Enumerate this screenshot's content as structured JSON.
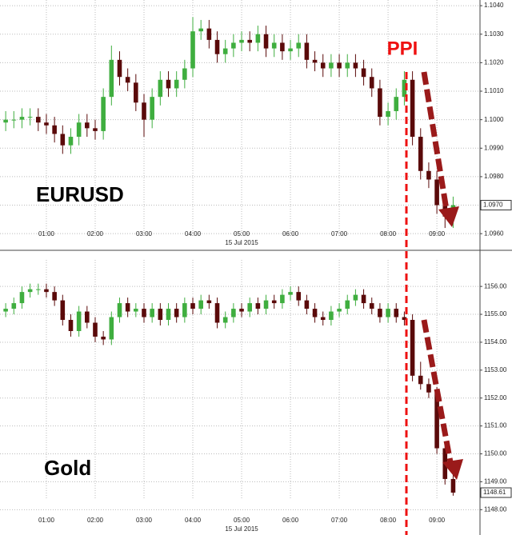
{
  "event_label": "PPI",
  "chart_data": [
    {
      "type": "candlestick",
      "annotation": "EURUSD",
      "xlabel": "15 Jul 2015",
      "xlim": [
        "00:03",
        "09:53"
      ],
      "xticks": [
        "01:00",
        "02:00",
        "03:00",
        "04:00",
        "05:00",
        "06:00",
        "07:00",
        "08:00",
        "09:00"
      ],
      "ylim": [
        1.0955,
        1.1042
      ],
      "yticks": [
        {
          "value": 1.096,
          "label": "1.0960"
        },
        {
          "value": 1.097,
          "label": "1.0970"
        },
        {
          "value": 1.098,
          "label": "1.0980"
        },
        {
          "value": 1.099,
          "label": "1.0990"
        },
        {
          "value": 1.1,
          "label": "1.1000"
        },
        {
          "value": 1.101,
          "label": "1.1010"
        },
        {
          "value": 1.102,
          "label": "1.1020"
        },
        {
          "value": 1.103,
          "label": "1.1030"
        },
        {
          "value": 1.104,
          "label": "1.1040"
        }
      ],
      "grid": true,
      "up_color": "#3fae3f",
      "down_color": "#5a0a0a",
      "last_price": {
        "value": 1.097,
        "label": "1.0970"
      },
      "x": [
        "00:10",
        "00:20",
        "00:30",
        "00:40",
        "00:50",
        "01:00",
        "01:10",
        "01:20",
        "01:30",
        "01:40",
        "01:50",
        "02:00",
        "02:10",
        "02:20",
        "02:30",
        "02:40",
        "02:50",
        "03:00",
        "03:10",
        "03:20",
        "03:30",
        "03:40",
        "03:50",
        "04:00",
        "04:10",
        "04:20",
        "04:30",
        "04:40",
        "04:50",
        "05:00",
        "05:10",
        "05:20",
        "05:30",
        "05:40",
        "05:50",
        "06:00",
        "06:10",
        "06:20",
        "06:30",
        "06:40",
        "06:50",
        "07:00",
        "07:10",
        "07:20",
        "07:30",
        "07:40",
        "07:50",
        "08:00",
        "08:10",
        "08:20",
        "08:30",
        "08:40",
        "08:50",
        "09:00",
        "09:10",
        "09:20"
      ],
      "open": [
        1.0999,
        1.1,
        1.1,
        1.1001,
        1.1001,
        1.0999,
        1.0998,
        1.0995,
        1.0991,
        1.0994,
        1.0999,
        1.0997,
        1.0996,
        1.1008,
        1.1021,
        1.1015,
        1.1013,
        1.1006,
        1.1,
        1.1008,
        1.1014,
        1.1011,
        1.1014,
        1.1018,
        1.1031,
        1.1032,
        1.1028,
        1.1023,
        1.1025,
        1.1027,
        1.1028,
        1.1027,
        1.103,
        1.1025,
        1.1027,
        1.1024,
        1.1025,
        1.1027,
        1.1021,
        1.102,
        1.1018,
        1.102,
        1.1018,
        1.102,
        1.1018,
        1.1015,
        1.1011,
        1.1001,
        1.1003,
        1.1008,
        1.1014,
        1.0994,
        1.0982,
        1.0979,
        1.097,
        1.0966
      ],
      "high": [
        1.1003,
        1.1003,
        1.1004,
        1.1004,
        1.1004,
        1.1002,
        1.1001,
        1.0998,
        1.0997,
        1.1002,
        1.1002,
        1.1,
        1.1011,
        1.1026,
        1.1024,
        1.1018,
        1.1016,
        1.1009,
        1.1011,
        1.1017,
        1.1017,
        1.1017,
        1.1021,
        1.1036,
        1.1035,
        1.1035,
        1.1031,
        1.1028,
        1.103,
        1.1031,
        1.1031,
        1.1033,
        1.1033,
        1.103,
        1.103,
        1.1028,
        1.103,
        1.103,
        1.1024,
        1.1023,
        1.1023,
        1.1023,
        1.1023,
        1.1023,
        1.1021,
        1.1018,
        1.1014,
        1.1006,
        1.1011,
        1.1017,
        1.1017,
        1.0997,
        1.0985,
        1.0982,
        1.0973,
        1.0973
      ],
      "low": [
        1.0996,
        1.0997,
        1.0997,
        1.0998,
        1.0996,
        1.0995,
        1.0992,
        1.0988,
        1.0988,
        1.0991,
        1.0994,
        1.0993,
        1.0993,
        1.1005,
        1.1012,
        1.101,
        1.1003,
        1.0994,
        1.0997,
        1.1005,
        1.1008,
        1.1008,
        1.1011,
        1.1015,
        1.1028,
        1.1025,
        1.102,
        1.102,
        1.1022,
        1.1024,
        1.1024,
        1.1024,
        1.1022,
        1.1022,
        1.1021,
        1.1021,
        1.1022,
        1.1018,
        1.1017,
        1.1015,
        1.1015,
        1.1015,
        1.1015,
        1.1015,
        1.1012,
        1.1008,
        1.0998,
        1.0998,
        1.1,
        1.1005,
        1.0991,
        1.0979,
        1.0976,
        1.0967,
        1.0962,
        1.0962
      ],
      "close": [
        1.1,
        1.1,
        1.1001,
        1.1001,
        1.0999,
        1.0998,
        1.0995,
        1.0991,
        1.0994,
        1.0999,
        1.0997,
        1.0996,
        1.1008,
        1.1021,
        1.1015,
        1.1013,
        1.1006,
        1.1,
        1.1008,
        1.1014,
        1.1011,
        1.1014,
        1.1018,
        1.1031,
        1.1032,
        1.1028,
        1.1023,
        1.1025,
        1.1027,
        1.1028,
        1.1027,
        1.103,
        1.1025,
        1.1027,
        1.1024,
        1.1025,
        1.1027,
        1.1021,
        1.102,
        1.1018,
        1.102,
        1.1018,
        1.102,
        1.1018,
        1.1015,
        1.1011,
        1.1001,
        1.1003,
        1.1008,
        1.1014,
        1.0994,
        1.0982,
        1.0979,
        1.097,
        1.0966,
        1.097
      ]
    },
    {
      "type": "candlestick",
      "annotation": "Gold",
      "xlabel": "15 Jul 2015",
      "xlim": [
        "00:03",
        "09:53"
      ],
      "xticks": [
        "01:00",
        "02:00",
        "03:00",
        "04:00",
        "05:00",
        "06:00",
        "07:00",
        "08:00",
        "09:00"
      ],
      "ylim": [
        1147.78,
        1156.95
      ],
      "yticks": [
        {
          "value": 1148,
          "label": "1148.00"
        },
        {
          "value": 1149,
          "label": "1149.00"
        },
        {
          "value": 1150,
          "label": "1150.00"
        },
        {
          "value": 1151,
          "label": "1151.00"
        },
        {
          "value": 1152,
          "label": "1152.00"
        },
        {
          "value": 1153,
          "label": "1153.00"
        },
        {
          "value": 1154,
          "label": "1154.00"
        },
        {
          "value": 1155,
          "label": "1155.00"
        },
        {
          "value": 1156,
          "label": "1156.00"
        }
      ],
      "grid": true,
      "up_color": "#3fae3f",
      "down_color": "#5a0a0a",
      "last_price": 1148.61,
      "x": [
        "00:10",
        "00:20",
        "00:30",
        "00:40",
        "00:50",
        "01:00",
        "01:10",
        "01:20",
        "01:30",
        "01:40",
        "01:50",
        "02:00",
        "02:10",
        "02:20",
        "02:30",
        "02:40",
        "02:50",
        "03:00",
        "03:10",
        "03:20",
        "03:30",
        "03:40",
        "03:50",
        "04:00",
        "04:10",
        "04:20",
        "04:30",
        "04:40",
        "04:50",
        "05:00",
        "05:10",
        "05:20",
        "05:30",
        "05:40",
        "05:50",
        "06:00",
        "06:10",
        "06:20",
        "06:30",
        "06:40",
        "06:50",
        "07:00",
        "07:10",
        "07:20",
        "07:30",
        "07:40",
        "07:50",
        "08:00",
        "08:10",
        "08:20",
        "08:30",
        "08:40",
        "08:50",
        "09:00",
        "09:10",
        "09:20"
      ],
      "open": [
        1155.1,
        1155.2,
        1155.4,
        1155.8,
        1155.9,
        1155.9,
        1155.8,
        1155.5,
        1154.8,
        1154.4,
        1155.1,
        1154.7,
        1154.2,
        1154.1,
        1154.9,
        1155.4,
        1155.1,
        1155.2,
        1154.9,
        1155.2,
        1154.8,
        1155.2,
        1154.9,
        1155.4,
        1155.2,
        1155.5,
        1155.4,
        1154.7,
        1154.9,
        1155.2,
        1155.1,
        1155.4,
        1155.2,
        1155.5,
        1155.4,
        1155.7,
        1155.8,
        1155.5,
        1155.2,
        1154.9,
        1154.8,
        1155.1,
        1155.2,
        1155.5,
        1155.7,
        1155.4,
        1155.2,
        1154.9,
        1155.2,
        1154.9,
        1154.8,
        1152.8,
        1152.5,
        1152.2,
        1150.2,
        1149.1
      ],
      "high": [
        1155.4,
        1155.6,
        1156.0,
        1156.1,
        1156.1,
        1156.1,
        1156.0,
        1155.7,
        1155.0,
        1155.3,
        1155.3,
        1154.9,
        1154.4,
        1155.1,
        1155.6,
        1155.6,
        1155.4,
        1155.4,
        1155.4,
        1155.4,
        1155.4,
        1155.4,
        1155.6,
        1155.6,
        1155.7,
        1155.7,
        1155.6,
        1155.1,
        1155.4,
        1155.4,
        1155.6,
        1155.6,
        1155.7,
        1155.7,
        1155.9,
        1156.0,
        1156.0,
        1155.7,
        1155.4,
        1155.1,
        1155.3,
        1155.4,
        1155.7,
        1155.9,
        1155.9,
        1155.6,
        1155.4,
        1155.4,
        1155.4,
        1155.1,
        1155.0,
        1153.3,
        1152.7,
        1152.4,
        1150.4,
        1149.3
      ],
      "low": [
        1154.9,
        1155.0,
        1155.2,
        1155.6,
        1155.7,
        1155.6,
        1155.3,
        1154.6,
        1154.2,
        1154.2,
        1154.5,
        1154.0,
        1153.9,
        1153.9,
        1154.7,
        1154.9,
        1154.9,
        1154.7,
        1154.7,
        1154.6,
        1154.6,
        1154.7,
        1154.7,
        1155.0,
        1155.0,
        1155.2,
        1154.5,
        1154.5,
        1154.7,
        1154.9,
        1154.9,
        1155.0,
        1155.0,
        1155.2,
        1155.2,
        1155.5,
        1155.3,
        1155.0,
        1154.7,
        1154.6,
        1154.6,
        1154.9,
        1155.0,
        1155.3,
        1155.2,
        1155.0,
        1154.7,
        1154.7,
        1154.7,
        1154.6,
        1152.6,
        1152.3,
        1152.0,
        1150.0,
        1148.9,
        1148.5
      ],
      "close": [
        1155.2,
        1155.4,
        1155.8,
        1155.9,
        1155.9,
        1155.8,
        1155.5,
        1154.8,
        1154.4,
        1155.1,
        1154.7,
        1154.2,
        1154.1,
        1154.9,
        1155.4,
        1155.1,
        1155.2,
        1154.9,
        1155.2,
        1154.8,
        1155.2,
        1154.9,
        1155.4,
        1155.2,
        1155.5,
        1155.4,
        1154.7,
        1154.9,
        1155.2,
        1155.1,
        1155.4,
        1155.2,
        1155.5,
        1155.4,
        1155.7,
        1155.8,
        1155.5,
        1155.2,
        1154.9,
        1154.8,
        1155.1,
        1155.2,
        1155.5,
        1155.7,
        1155.4,
        1155.2,
        1154.9,
        1155.2,
        1154.9,
        1154.8,
        1152.8,
        1152.5,
        1152.2,
        1150.2,
        1149.1,
        1148.61
      ]
    }
  ]
}
